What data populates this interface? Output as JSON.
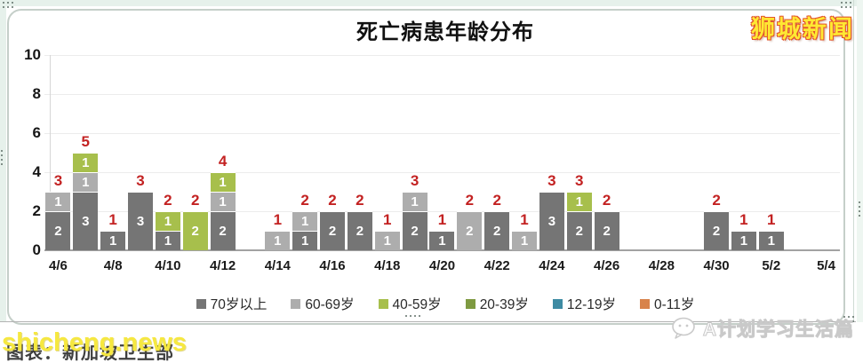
{
  "title": "死亡病患年龄分布",
  "brand": "狮城新闻",
  "watermark": "shicheng.news",
  "source_text": "图表：新加坡卫生部",
  "account_name": "A计划学习生活篇",
  "colors": {
    "label_red": "#c32222",
    "bar_dark_gray": "#757575",
    "bar_light_gray": "#adadad",
    "bar_light_green": "#a7bf4c",
    "legend_olive": "#7e9a41",
    "legend_teal": "#3e8ba3",
    "legend_orange": "#d8834b"
  },
  "chart_data": {
    "type": "bar",
    "stacked": true,
    "title": "死亡病患年龄分布",
    "xlabel": "",
    "ylabel": "",
    "ylim": [
      0,
      10
    ],
    "yticks": [
      0,
      2,
      4,
      6,
      8,
      10
    ],
    "grid": true,
    "legend_position": "bottom",
    "colors": {
      "g70": "#757575",
      "g60": "#adadad",
      "g40": "#a7bf4c",
      "g20": "#7e9a41",
      "g12": "#3e8ba3",
      "g0": "#d8834b"
    },
    "legend": [
      {
        "key": "g70",
        "label": "70岁以上"
      },
      {
        "key": "g60",
        "label": "60-69岁"
      },
      {
        "key": "g40",
        "label": "40-59岁"
      },
      {
        "key": "g20",
        "label": "20-39岁"
      },
      {
        "key": "g12",
        "label": "12-19岁"
      },
      {
        "key": "g0",
        "label": "0-11岁"
      }
    ],
    "days": [
      {
        "date": "4/6",
        "show_label": true,
        "total": 3,
        "segments": [
          [
            "g70",
            2
          ],
          [
            "g60",
            1
          ]
        ]
      },
      {
        "date": "4/7",
        "show_label": false,
        "total": 5,
        "segments": [
          [
            "g70",
            3
          ],
          [
            "g60",
            1
          ],
          [
            "g40",
            1
          ]
        ]
      },
      {
        "date": "4/8",
        "show_label": true,
        "total": 1,
        "segments": [
          [
            "g70",
            1
          ]
        ]
      },
      {
        "date": "4/9",
        "show_label": false,
        "total": 3,
        "segments": [
          [
            "g70",
            3
          ]
        ]
      },
      {
        "date": "4/10",
        "show_label": true,
        "total": 2,
        "segments": [
          [
            "g70",
            1
          ],
          [
            "g40",
            1
          ]
        ]
      },
      {
        "date": "4/11",
        "show_label": false,
        "total": 2,
        "segments": [
          [
            "g40",
            2
          ]
        ]
      },
      {
        "date": "4/12",
        "show_label": true,
        "total": 4,
        "segments": [
          [
            "g70",
            2
          ],
          [
            "g60",
            1
          ],
          [
            "g40",
            1
          ]
        ]
      },
      {
        "date": "4/13",
        "show_label": false,
        "total": 0,
        "segments": []
      },
      {
        "date": "4/14",
        "show_label": true,
        "total": 1,
        "segments": [
          [
            "g60",
            1
          ]
        ]
      },
      {
        "date": "4/15",
        "show_label": false,
        "total": 2,
        "segments": [
          [
            "g70",
            1
          ],
          [
            "g60",
            1
          ]
        ]
      },
      {
        "date": "4/16",
        "show_label": true,
        "total": 2,
        "segments": [
          [
            "g70",
            2
          ]
        ]
      },
      {
        "date": "4/17",
        "show_label": false,
        "total": 2,
        "segments": [
          [
            "g70",
            2
          ]
        ]
      },
      {
        "date": "4/18",
        "show_label": true,
        "total": 1,
        "segments": [
          [
            "g60",
            1
          ]
        ]
      },
      {
        "date": "4/19",
        "show_label": false,
        "total": 3,
        "segments": [
          [
            "g70",
            2
          ],
          [
            "g60",
            1
          ]
        ]
      },
      {
        "date": "4/20",
        "show_label": true,
        "total": 1,
        "segments": [
          [
            "g70",
            1
          ]
        ]
      },
      {
        "date": "4/21",
        "show_label": false,
        "total": 2,
        "segments": [
          [
            "g60",
            2
          ]
        ]
      },
      {
        "date": "4/22",
        "show_label": true,
        "total": 2,
        "segments": [
          [
            "g70",
            2
          ]
        ]
      },
      {
        "date": "4/23",
        "show_label": false,
        "total": 1,
        "segments": [
          [
            "g60",
            1
          ]
        ]
      },
      {
        "date": "4/24",
        "show_label": true,
        "total": 3,
        "segments": [
          [
            "g70",
            3
          ]
        ]
      },
      {
        "date": "4/25",
        "show_label": false,
        "total": 3,
        "segments": [
          [
            "g70",
            2
          ],
          [
            "g40",
            1
          ]
        ]
      },
      {
        "date": "4/26",
        "show_label": true,
        "total": 2,
        "segments": [
          [
            "g70",
            2
          ]
        ]
      },
      {
        "date": "4/27",
        "show_label": false,
        "total": 0,
        "segments": []
      },
      {
        "date": "4/28",
        "show_label": true,
        "total": 0,
        "segments": []
      },
      {
        "date": "4/29",
        "show_label": false,
        "total": 0,
        "segments": []
      },
      {
        "date": "4/30",
        "show_label": true,
        "total": 2,
        "segments": [
          [
            "g70",
            2
          ]
        ]
      },
      {
        "date": "5/1",
        "show_label": false,
        "total": 1,
        "segments": [
          [
            "g70",
            1
          ]
        ]
      },
      {
        "date": "5/2",
        "show_label": true,
        "total": 1,
        "segments": [
          [
            "g70",
            1
          ]
        ]
      },
      {
        "date": "5/3",
        "show_label": false,
        "total": 0,
        "segments": []
      },
      {
        "date": "5/4",
        "show_label": true,
        "total": 0,
        "segments": []
      }
    ]
  }
}
